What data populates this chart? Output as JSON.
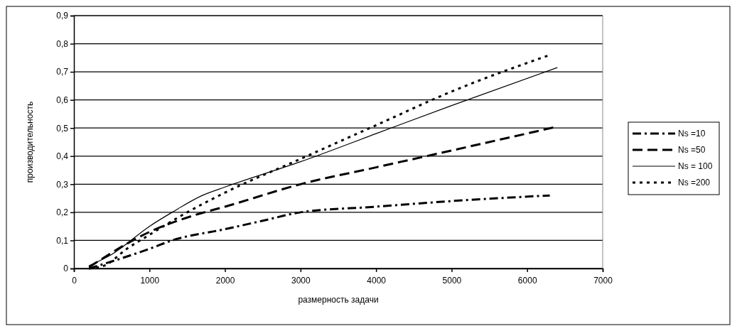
{
  "chart_data": {
    "type": "line",
    "xlabel": "размерность задачи",
    "ylabel": "производительность",
    "xlim": [
      0,
      7000
    ],
    "xticks": [
      0,
      1000,
      2000,
      3000,
      4000,
      5000,
      6000,
      7000
    ],
    "ylim": [
      0,
      0.9
    ],
    "yticks": [
      0,
      {
        "value": 0.1,
        "label": "0,1"
      },
      {
        "value": 0.2,
        "label": "0,2"
      },
      {
        "value": 0.3,
        "label": "0,3"
      },
      {
        "value": 0.4,
        "label": "0,4"
      },
      {
        "value": 0.5,
        "label": "0,5"
      },
      {
        "value": 0.6,
        "label": "0,6"
      },
      {
        "value": 0.7,
        "label": "0,7"
      },
      {
        "value": 0.8,
        "label": "0,8"
      },
      {
        "value": 0.9,
        "label": "0,9"
      }
    ],
    "grid": "y",
    "legend": "right",
    "marker": "none",
    "x": [
      200,
      1000,
      1300,
      2000,
      2500,
      3000,
      4000,
      5000,
      6300
    ],
    "series": [
      {
        "name": "Ns =10",
        "color": "#000000",
        "line_style": "dashdot",
        "values": [
          0,
          0.07,
          0.1,
          0.14,
          0.17,
          0.2,
          0.22,
          0.24,
          0.26
        ]
      },
      {
        "name": "Ns =50",
        "color": "#000000",
        "line_style": "dashed",
        "x": [
          200,
          1000,
          1600,
          2000,
          3000,
          4000,
          5000,
          6400
        ],
        "values": [
          0.005,
          0.13,
          0.19,
          0.22,
          0.3,
          0.36,
          0.42,
          0.505
        ]
      },
      {
        "name": "Ns = 100",
        "color": "#000000",
        "line_style": "solid",
        "x": [
          200,
          500,
          1000,
          1300,
          1700,
          2000,
          3000,
          4000,
          5000,
          6400
        ],
        "values": [
          0.01,
          0.05,
          0.15,
          0.2,
          0.26,
          0.29,
          0.38,
          0.48,
          0.58,
          0.715
        ]
      },
      {
        "name": "Ns =200",
        "color": "#000000",
        "line_style": "dotted",
        "x": [
          200,
          400,
          700,
          1000,
          1500,
          2000,
          3000,
          4000,
          5000,
          6300
        ],
        "values": [
          0,
          0.01,
          0.07,
          0.12,
          0.2,
          0.27,
          0.39,
          0.51,
          0.63,
          0.76
        ]
      }
    ]
  }
}
